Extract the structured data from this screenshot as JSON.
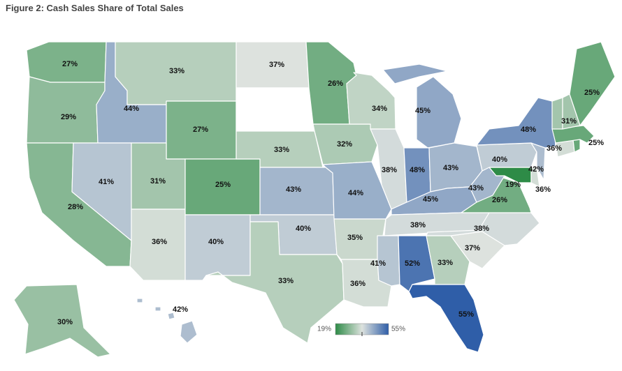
{
  "title": "Figure 2: Cash Sales Share of Total Sales",
  "colors": {
    "low": "#2e8b47",
    "mid": "#dde2de",
    "high": "#2f5ea8",
    "water": "#ffffff"
  },
  "legend": {
    "min_label": "19%",
    "max_label": "55%",
    "min": 19,
    "max": 55
  },
  "chart_data": {
    "type": "choropleth",
    "unit": "%",
    "states": [
      {
        "id": "WA",
        "value": 27
      },
      {
        "id": "OR",
        "value": 29
      },
      {
        "id": "CA",
        "value": 28
      },
      {
        "id": "ID",
        "value": 44
      },
      {
        "id": "NV",
        "value": 41
      },
      {
        "id": "MT",
        "value": 33
      },
      {
        "id": "WY",
        "value": 27
      },
      {
        "id": "UT",
        "value": 31
      },
      {
        "id": "AZ",
        "value": 36
      },
      {
        "id": "CO",
        "value": 25
      },
      {
        "id": "NM",
        "value": 40
      },
      {
        "id": "ND",
        "value": 37
      },
      {
        "id": "SD",
        "value": null
      },
      {
        "id": "NE",
        "value": 33
      },
      {
        "id": "KS",
        "value": 43
      },
      {
        "id": "OK",
        "value": 40
      },
      {
        "id": "TX",
        "value": 33
      },
      {
        "id": "MN",
        "value": 26
      },
      {
        "id": "IA",
        "value": 32
      },
      {
        "id": "MO",
        "value": 44
      },
      {
        "id": "AR",
        "value": 35
      },
      {
        "id": "LA",
        "value": 36
      },
      {
        "id": "WI",
        "value": 34
      },
      {
        "id": "IL",
        "value": 38
      },
      {
        "id": "MI",
        "value": 45
      },
      {
        "id": "IN",
        "value": 48
      },
      {
        "id": "OH",
        "value": 43
      },
      {
        "id": "KY",
        "value": 45
      },
      {
        "id": "TN",
        "value": 38
      },
      {
        "id": "MS",
        "value": 41
      },
      {
        "id": "AL",
        "value": 52
      },
      {
        "id": "GA",
        "value": 33
      },
      {
        "id": "FL",
        "value": 55
      },
      {
        "id": "SC",
        "value": 37
      },
      {
        "id": "NC",
        "value": 38
      },
      {
        "id": "VA",
        "value": 26
      },
      {
        "id": "WV",
        "value": 43
      },
      {
        "id": "MD",
        "value": 19
      },
      {
        "id": "DE",
        "value": 36
      },
      {
        "id": "PA",
        "value": 40
      },
      {
        "id": "NJ",
        "value": 42
      },
      {
        "id": "NY",
        "value": 48
      },
      {
        "id": "CT",
        "value": 36
      },
      {
        "id": "RI",
        "value": 25
      },
      {
        "id": "MA",
        "value": 25
      },
      {
        "id": "VT",
        "value": 31
      },
      {
        "id": "NH",
        "value": 31
      },
      {
        "id": "ME",
        "value": 25
      },
      {
        "id": "AK",
        "value": 30
      },
      {
        "id": "HI",
        "value": 42
      }
    ],
    "labels": [
      {
        "text": "27%"
      },
      {
        "text": "29%"
      },
      {
        "text": "28%"
      },
      {
        "text": "44%"
      },
      {
        "text": "41%"
      },
      {
        "text": "33%"
      },
      {
        "text": "27%"
      },
      {
        "text": "31%"
      },
      {
        "text": "36%"
      },
      {
        "text": "25%"
      },
      {
        "text": "40%"
      },
      {
        "text": "37%"
      },
      {
        "text": "33%"
      },
      {
        "text": "43%"
      },
      {
        "text": "40%"
      },
      {
        "text": "33%"
      },
      {
        "text": "26%"
      },
      {
        "text": "32%"
      },
      {
        "text": "44%"
      },
      {
        "text": "35%"
      },
      {
        "text": "36%"
      },
      {
        "text": "34%"
      },
      {
        "text": "38%"
      },
      {
        "text": "45%"
      },
      {
        "text": "48%"
      },
      {
        "text": "43%"
      },
      {
        "text": "45%"
      },
      {
        "text": "38%"
      },
      {
        "text": "41%"
      },
      {
        "text": "52%"
      },
      {
        "text": "33%"
      },
      {
        "text": "55%"
      },
      {
        "text": "37%"
      },
      {
        "text": "38%"
      },
      {
        "text": "26%"
      },
      {
        "text": "43%"
      },
      {
        "text": "19%"
      },
      {
        "text": "36%"
      },
      {
        "text": "40%"
      },
      {
        "text": "42%"
      },
      {
        "text": "48%"
      },
      {
        "text": "36%"
      },
      {
        "text": "25%"
      },
      {
        "text": "31%"
      },
      {
        "text": "25%"
      },
      {
        "text": "30%"
      },
      {
        "text": "42%"
      }
    ]
  }
}
